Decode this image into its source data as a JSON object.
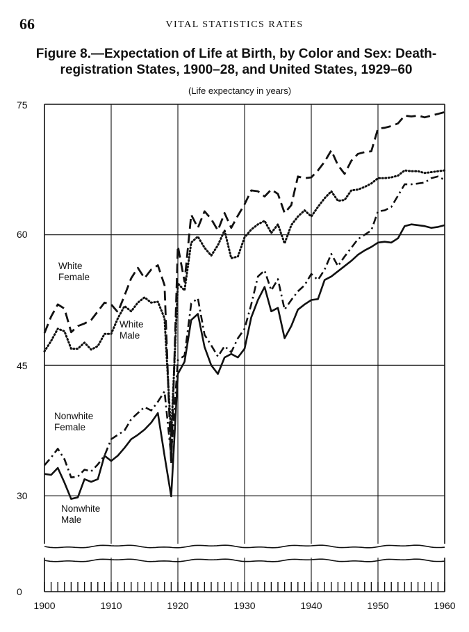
{
  "page": {
    "number": "66",
    "running_head": "VITAL STATISTICS RATES"
  },
  "figure": {
    "title_line1": "Figure 8.—Expectation of Life at Birth, by Color and Sex: Death-",
    "title_line2": "registration States, 1900–28, and United States, 1929–60",
    "subtitle": "(Life expectancy in years)"
  },
  "chart_data": {
    "type": "line",
    "title": "Figure 8.—Expectation of Life at Birth, by Color and Sex: Death-registration States, 1900–28, and United States, 1929–60",
    "subtitle": "(Life expectancy in years)",
    "xlabel": "",
    "ylabel": "",
    "xlim": [
      1900,
      1960
    ],
    "ylim": [
      0,
      75
    ],
    "y_axis_break": true,
    "grid": true,
    "x_ticks": [
      1900,
      1910,
      1920,
      1930,
      1940,
      1950,
      1960
    ],
    "y_ticks": [
      0,
      30,
      45,
      60,
      75
    ],
    "x": [
      1900,
      1901,
      1902,
      1903,
      1904,
      1905,
      1906,
      1907,
      1908,
      1909,
      1910,
      1911,
      1912,
      1913,
      1914,
      1915,
      1916,
      1917,
      1918,
      1919,
      1920,
      1921,
      1922,
      1923,
      1924,
      1925,
      1926,
      1927,
      1928,
      1929,
      1930,
      1931,
      1932,
      1933,
      1934,
      1935,
      1936,
      1937,
      1938,
      1939,
      1940,
      1941,
      1942,
      1943,
      1944,
      1945,
      1946,
      1947,
      1948,
      1949,
      1950,
      1951,
      1952,
      1953,
      1954,
      1955,
      1956,
      1957,
      1958,
      1959,
      1960
    ],
    "series": [
      {
        "name": "White Female",
        "style": "dashed",
        "values": [
          48.7,
          50.6,
          52.0,
          51.5,
          48.8,
          49.5,
          49.8,
          50.2,
          51.2,
          52.2,
          52.0,
          51.1,
          53.0,
          55.0,
          56.2,
          55.0,
          56.0,
          56.5,
          54.2,
          33.6,
          58.7,
          54.6,
          62.3,
          60.8,
          62.7,
          61.8,
          60.5,
          62.5,
          60.8,
          62.2,
          63.5,
          65.1,
          65.0,
          64.4,
          65.2,
          64.7,
          62.5,
          63.4,
          66.7,
          66.5,
          66.6,
          67.4,
          68.4,
          69.7,
          68.0,
          67.0,
          68.5,
          69.3,
          69.5,
          69.6,
          72.2,
          72.3,
          72.5,
          72.8,
          73.7,
          73.6,
          73.7,
          73.5,
          73.7,
          73.9,
          74.1
        ]
      },
      {
        "name": "White Male",
        "style": "dotted",
        "values": [
          46.6,
          47.8,
          49.2,
          48.9,
          46.9,
          46.9,
          47.6,
          46.8,
          47.2,
          48.6,
          48.6,
          50.4,
          51.8,
          51.2,
          52.2,
          52.8,
          52.2,
          52.3,
          50.4,
          36.8,
          54.4,
          53.6,
          59.1,
          59.8,
          58.5,
          57.6,
          58.8,
          60.5,
          57.3,
          57.5,
          59.7,
          60.6,
          61.2,
          61.6,
          60.2,
          61.2,
          59.0,
          61.1,
          62.1,
          62.8,
          62.1,
          63.2,
          64.2,
          65.0,
          63.9,
          64.0,
          65.1,
          65.2,
          65.5,
          65.9,
          66.5,
          66.5,
          66.6,
          66.8,
          67.4,
          67.3,
          67.3,
          67.1,
          67.2,
          67.3,
          67.4
        ]
      },
      {
        "name": "Nonwhite Female",
        "style": "dash-dot",
        "values": [
          33.5,
          34.4,
          35.4,
          34.2,
          32.1,
          32.2,
          33.0,
          32.8,
          33.6,
          34.6,
          36.5,
          37.0,
          37.5,
          38.8,
          39.5,
          40.2,
          39.8,
          40.8,
          42.0,
          34.5,
          45.6,
          46.1,
          52.1,
          52.7,
          48.5,
          47.3,
          46.0,
          47.2,
          46.5,
          48.1,
          49.2,
          52.0,
          55.2,
          55.9,
          53.6,
          54.9,
          51.4,
          52.5,
          53.5,
          54.2,
          55.5,
          54.8,
          56.0,
          57.8,
          56.4,
          57.5,
          58.5,
          59.5,
          60.0,
          60.5,
          62.7,
          62.8,
          63.2,
          64.5,
          65.8,
          65.8,
          65.9,
          66.0,
          66.5,
          66.7,
          66.3
        ]
      },
      {
        "name": "Nonwhite Male",
        "style": "solid",
        "values": [
          32.5,
          32.4,
          33.2,
          31.5,
          29.0,
          29.5,
          31.9,
          31.6,
          31.9,
          34.6,
          34.0,
          34.6,
          35.5,
          36.5,
          37.0,
          37.6,
          38.4,
          39.5,
          34.6,
          29.8,
          44.0,
          45.4,
          50.2,
          50.9,
          47.1,
          45.0,
          44.0,
          45.9,
          46.3,
          45.9,
          46.9,
          50.5,
          52.5,
          54.0,
          51.2,
          51.6,
          48.1,
          49.5,
          51.4,
          52.0,
          52.5,
          52.6,
          54.8,
          55.2,
          55.8,
          56.4,
          57.0,
          57.7,
          58.2,
          58.6,
          59.1,
          59.2,
          59.1,
          59.6,
          61.0,
          61.2,
          61.1,
          61.0,
          60.8,
          60.9,
          61.1
        ]
      }
    ],
    "legend": [
      {
        "series": "White Female",
        "label_line1": "White",
        "label_line2": "Female"
      },
      {
        "series": "White Male",
        "label_line1": "White",
        "label_line2": "Male"
      },
      {
        "series": "Nonwhite Female",
        "label_line1": "Nonwhite",
        "label_line2": "Female"
      },
      {
        "series": "Nonwhite Male",
        "label_line1": "Nonwhite",
        "label_line2": "Male"
      }
    ],
    "legend_placement": "inline labels near series"
  }
}
